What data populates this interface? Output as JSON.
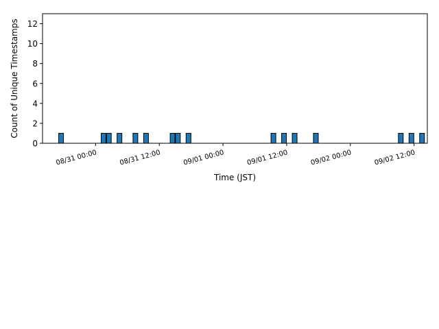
{
  "chart_data": {
    "type": "bar",
    "title": "",
    "xlabel": "Time (JST)",
    "ylabel": "Count of Unique Timestamps",
    "x_tick_labels": [
      "08/31 00:00",
      "08/31 12:00",
      "09/01 00:00",
      "09/01 12:00",
      "09/02 00:00",
      "09/02 12:00"
    ],
    "y_ticks": [
      0,
      2,
      4,
      6,
      8,
      10,
      12
    ],
    "ylim": [
      0,
      13
    ],
    "xlim": [
      "08/30 14:00",
      "09/02 14:30"
    ],
    "bin_hours": 1,
    "bar_color": "#1f77b4",
    "bar_edge_color": "#000000",
    "bins": [
      {
        "start": "08/30 17:00",
        "count": 1
      },
      {
        "start": "08/31 01:00",
        "count": 1
      },
      {
        "start": "08/31 02:00",
        "count": 1
      },
      {
        "start": "08/31 04:00",
        "count": 1
      },
      {
        "start": "08/31 07:00",
        "count": 1
      },
      {
        "start": "08/31 09:00",
        "count": 1
      },
      {
        "start": "08/31 14:00",
        "count": 1
      },
      {
        "start": "08/31 15:00",
        "count": 1
      },
      {
        "start": "08/31 17:00",
        "count": 1
      },
      {
        "start": "09/01 09:00",
        "count": 1
      },
      {
        "start": "09/01 11:00",
        "count": 1
      },
      {
        "start": "09/01 13:00",
        "count": 1
      },
      {
        "start": "09/01 17:00",
        "count": 1
      },
      {
        "start": "09/02 09:00",
        "count": 1
      },
      {
        "start": "09/02 11:00",
        "count": 1
      },
      {
        "start": "09/02 13:00",
        "count": 1
      }
    ]
  }
}
